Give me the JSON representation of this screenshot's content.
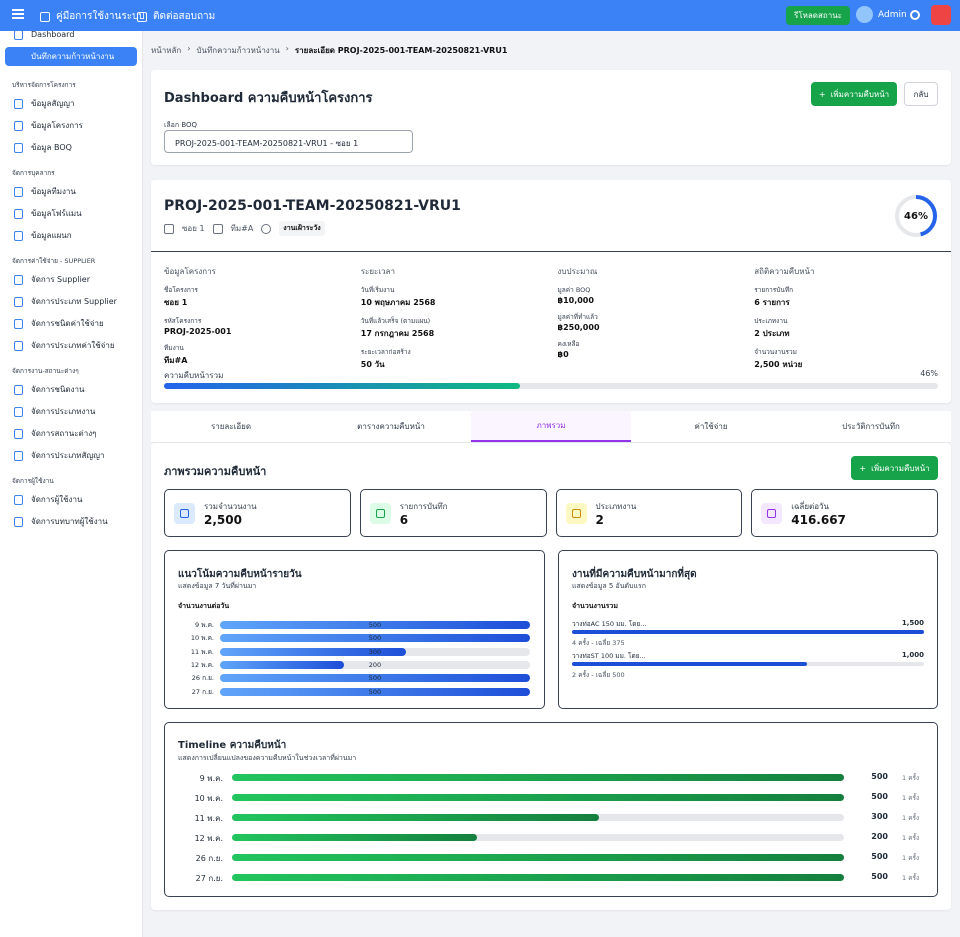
{
  "topbar": {
    "manual": "คู่มือการใช้งานระบบ",
    "contact": "ติดต่อสอบถาม",
    "refresh": "รีโหลดสถานะ",
    "user": "Admin"
  },
  "sidebar": [
    {
      "item": "Dashboard"
    },
    {
      "item": "บันทึกความก้าวหน้างาน",
      "active": true
    },
    {
      "section": "บริหารจัดการโครงการ"
    },
    {
      "item": "ข้อมูลสัญญา"
    },
    {
      "item": "ข้อมูลโครงการ"
    },
    {
      "item": "ข้อมูล BOQ"
    },
    {
      "section": "จัดการบุคลากร"
    },
    {
      "item": "ข้อมูลทีมงาน"
    },
    {
      "item": "ข้อมูลโฟร์แมน"
    },
    {
      "item": "ข้อมูลแผนก"
    },
    {
      "section": "จัดการค่าใช้จ่าย - SUPPLIER"
    },
    {
      "item": "จัดการ Supplier"
    },
    {
      "item": "จัดการประเภท Supplier"
    },
    {
      "item": "จัดการชนิดค่าใช้จ่าย"
    },
    {
      "item": "จัดการประเภทค่าใช้จ่าย"
    },
    {
      "section": "จัดการงาน-สถานะต่างๆ"
    },
    {
      "item": "จัดการชนิดงาน"
    },
    {
      "item": "จัดการประเภทงาน"
    },
    {
      "item": "จัดการสถานะต่างๆ"
    },
    {
      "item": "จัดการประเภทสัญญา"
    },
    {
      "section": "จัดการผู้ใช้งาน"
    },
    {
      "item": "จัดการผู้ใช้งาน"
    },
    {
      "item": "จัดการบทบาทผู้ใช้งาน"
    }
  ],
  "breadcrumb": [
    "หน้าหลัก",
    "บันทึกความก้าวหน้างาน",
    "รายละเอียด PROJ-2025-001-TEAM-20250821-VRU1"
  ],
  "header": {
    "title": "Dashboard ความคืบหน้าโครงการ",
    "add_button": "เพิ่มความคืบหน้า",
    "back_button": "กลับ",
    "select_label": "เลือก BOQ",
    "select_value": "PROJ-2025-001-TEAM-20250821-VRU1 - ซอย 1"
  },
  "project": {
    "code": "PROJ-2025-001-TEAM-20250821-VRU1",
    "site": "ซอย 1",
    "team": "ทีม#A",
    "badge": "งานเฝ้าระวัง",
    "progress": {
      "value": 46,
      "label": "46%"
    },
    "columns": [
      {
        "heading": "ข้อมูลโครงการ",
        "fields": [
          [
            "ชื่อโครงการ",
            "ซอย 1"
          ],
          [
            "รหัสโครงการ",
            "PROJ-2025-001"
          ],
          [
            "ทีมงาน",
            "ทีม#A"
          ]
        ]
      },
      {
        "heading": "ระยะเวลา",
        "fields": [
          [
            "วันที่เริ่มงาน",
            "10 พฤษภาคม 2568"
          ],
          [
            "วันที่แล้วเสร็จ (ตามแผน)",
            "17 กรกฎาคม 2568"
          ],
          [
            "ระยะเวลาก่อสร้าง",
            "50 วัน"
          ]
        ]
      },
      {
        "heading": "งบประมาณ",
        "fields": [
          [
            "มูลค่า BOQ",
            "฿10,000"
          ],
          [
            "มูลค่าที่ทำแล้ว",
            "฿250,000"
          ],
          [
            "คงเหลือ",
            "฿0"
          ]
        ]
      },
      {
        "heading": "สถิติความคืบหน้า",
        "fields": [
          [
            "รายการบันทึก",
            "6 รายการ"
          ],
          [
            "ประเภทงาน",
            "2 ประเภท"
          ],
          [
            "จำนวนงานรวม",
            "2,500 หน่วย"
          ]
        ]
      }
    ],
    "overall_label": "ความคืบหน้ารวม"
  },
  "tabs": [
    "รายละเอียด",
    "ตารางความคืบหน้า",
    "ภาพรวม",
    "ค่าใช้จ่าย",
    "ประวัติการบันทึก"
  ],
  "overview": {
    "title": "ภาพรวมความคืบหน้า",
    "add_button": "เพิ่มความคืบหน้า",
    "stats": [
      [
        "รวมจำนวนงาน",
        "2,500"
      ],
      [
        "รายการบันทึก",
        "6"
      ],
      [
        "ประเภทงาน",
        "2"
      ],
      [
        "เฉลี่ยต่อวัน",
        "416.667"
      ]
    ],
    "daily": {
      "title": "แนวโน้มความคืบหน้ารายวัน",
      "subtitle": "แสดงข้อมูล 7 วันที่ผ่านมา",
      "label": "จำนวนงานต่อวัน",
      "categories": [
        "9 พ.ค.",
        "10 พ.ค.",
        "11 พ.ค.",
        "12 พ.ค.",
        "26 ก.ย.",
        "27 ก.ย."
      ],
      "values": [
        500,
        500,
        300,
        200,
        500,
        500
      ]
    },
    "top": {
      "title": "งานที่มีความคืบหน้ามากที่สุด",
      "subtitle": "แสดงข้อมูล 5 อันดับแรก",
      "label": "จำนวนงานรวม",
      "items": [
        {
          "name": "วางท่อAC 150 มม. โดย...",
          "value": 1500,
          "value_label": "1,500",
          "note": "4 ครั้ง - เฉลี่ย 375"
        },
        {
          "name": "วางท่อST 100 มม. โดย...",
          "value": 1000,
          "value_label": "1,000",
          "note": "2 ครั้ง - เฉลี่ย 500"
        }
      ]
    },
    "timeline": {
      "title": "Timeline ความคืบหน้า",
      "subtitle": "แสดงการเปลี่ยนแปลงของความคืบหน้าในช่วงเวลาที่ผ่านมา",
      "categories": [
        "9 พ.ค.",
        "10 พ.ค.",
        "11 พ.ค.",
        "12 พ.ค.",
        "26 ก.ย.",
        "27 ก.ย."
      ],
      "values": [
        500,
        500,
        300,
        200,
        500,
        500
      ],
      "counts": [
        "1 ครั้ง",
        "1 ครั้ง",
        "1 ครั้ง",
        "1 ครั้ง",
        "1 ครั้ง",
        "1 ครั้ง"
      ]
    }
  }
}
